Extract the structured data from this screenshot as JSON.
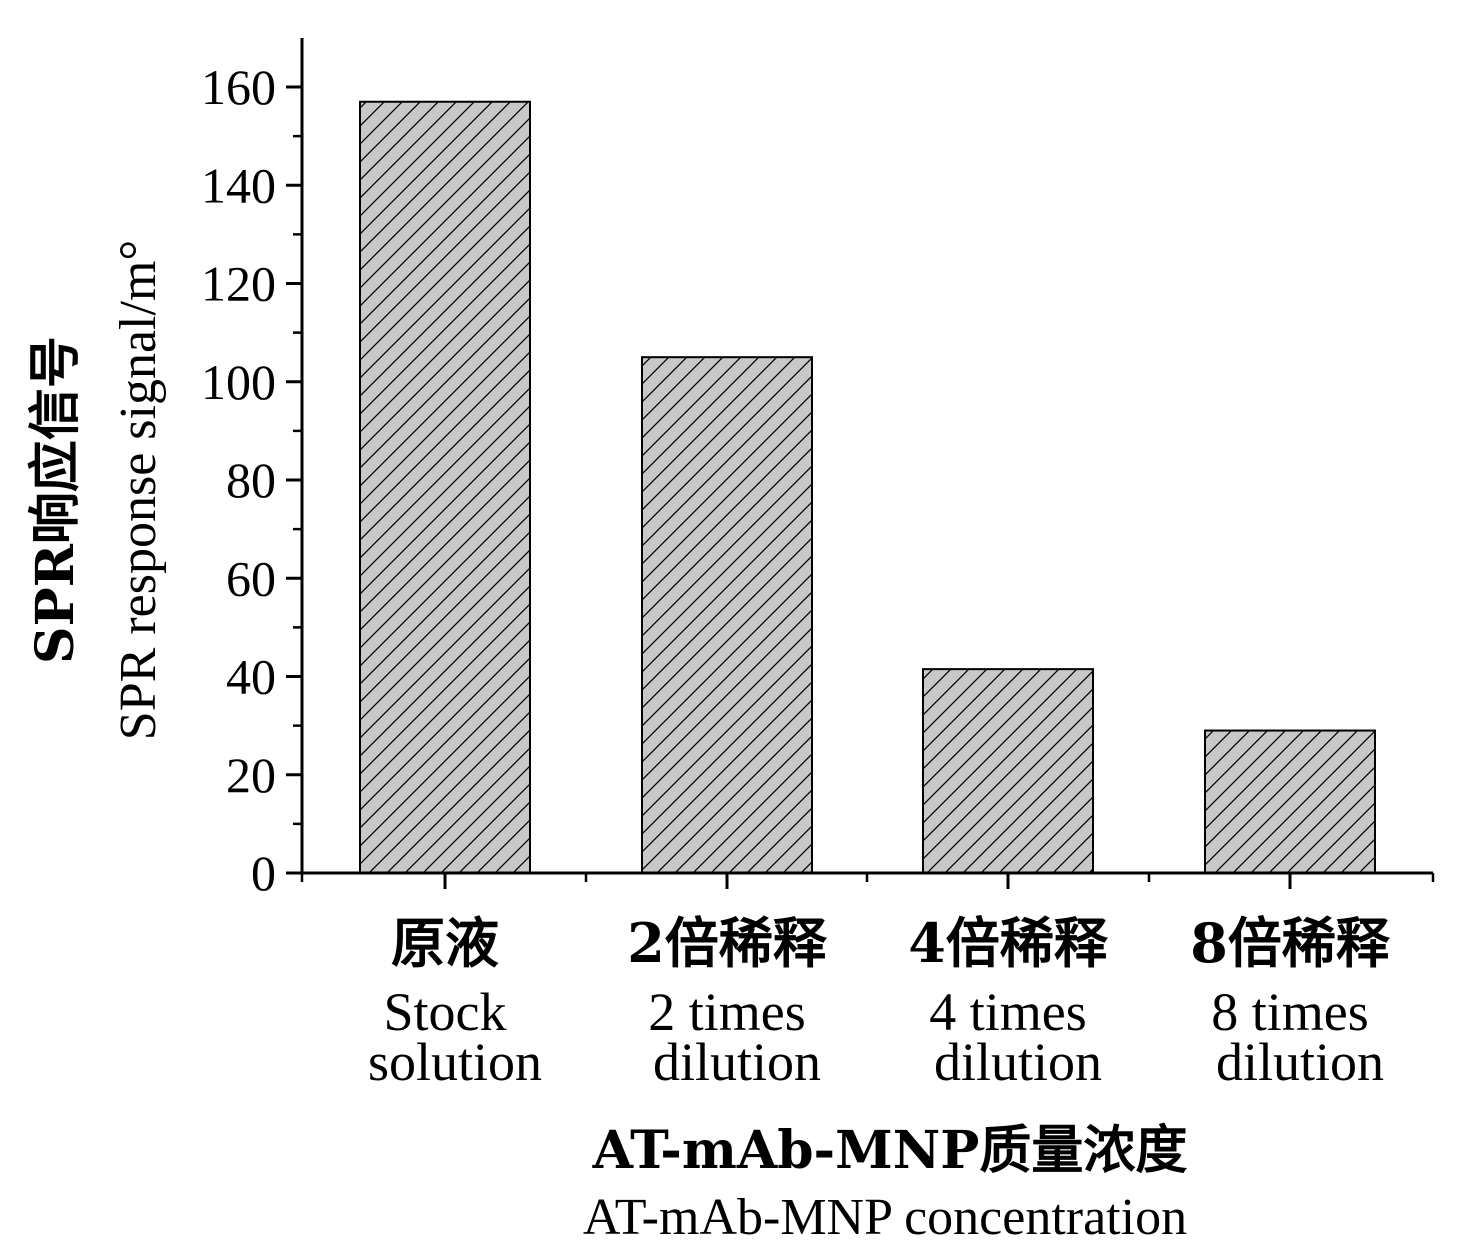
{
  "chart_data": {
    "type": "bar",
    "categories": [
      {
        "zh": "原液",
        "en_line1": "Stock",
        "en_line2": "solution"
      },
      {
        "zh": "2倍稀释",
        "en_line1": "2 times",
        "en_line2": "dilution"
      },
      {
        "zh": "4倍稀释",
        "en_line1": "4 times",
        "en_line2": "dilution"
      },
      {
        "zh": "8倍稀释",
        "en_line1": "8 times",
        "en_line2": "dilution"
      }
    ],
    "values": [
      157,
      105,
      41.5,
      29
    ],
    "xlabel_zh": "AT-mAb-MNP质量浓度",
    "xlabel_en": "AT-mAb-MNP concentration",
    "ylabel_zh": "SPR响应信号",
    "ylabel_en": "SPR response signal/m°",
    "ylim": [
      0,
      170
    ],
    "yticks": [
      "0",
      "20",
      "40",
      "60",
      "80",
      "100",
      "120",
      "140",
      "160"
    ],
    "bar_fill": "#c8c8c8",
    "bar_pattern": "diagonal-hatch",
    "grid": false,
    "legend": "none"
  }
}
